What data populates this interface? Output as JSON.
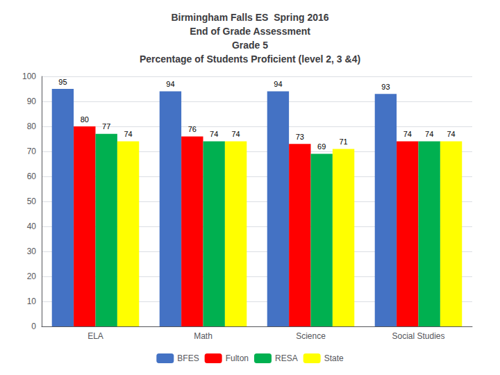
{
  "chart_data": {
    "type": "bar",
    "title": "Birmingham Falls ES  Spring 2016\nEnd of Grade Assessment\nGrade 5\nPercentage of Students Proficient (level 2, 3 &4)",
    "categories": [
      "ELA",
      "Math",
      "Science",
      "Social Studies"
    ],
    "series": [
      {
        "name": "BFES",
        "color": "#4472C4",
        "values": [
          95,
          94,
          94,
          93
        ]
      },
      {
        "name": "Fulton",
        "color": "#FF0000",
        "values": [
          80,
          76,
          73,
          74
        ]
      },
      {
        "name": "RESA",
        "color": "#00B050",
        "values": [
          77,
          74,
          69,
          74
        ]
      },
      {
        "name": "State",
        "color": "#FFFF00",
        "values": [
          74,
          74,
          71,
          74
        ]
      }
    ],
    "ylim": [
      0,
      100
    ],
    "yticks": [
      0,
      10,
      20,
      30,
      40,
      50,
      60,
      70,
      80,
      90,
      100
    ],
    "grid": true,
    "legend": "bottom",
    "data_labels": true
  }
}
